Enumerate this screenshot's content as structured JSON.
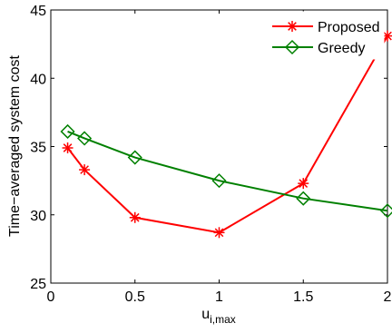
{
  "chart_data": {
    "type": "line",
    "x": [
      0.1,
      0.2,
      0.5,
      1,
      1.5,
      2
    ],
    "series": [
      {
        "name": "Proposed",
        "values": [
          34.9,
          33.3,
          29.8,
          28.7,
          32.3,
          43.1
        ],
        "color": "#ff0000",
        "marker": "asterisk"
      },
      {
        "name": "Greedy",
        "values": [
          36.1,
          35.6,
          34.2,
          32.5,
          31.2,
          30.3
        ],
        "color": "#008000",
        "marker": "diamond"
      }
    ],
    "xlabel": "u",
    "xlabel_sub": "i,max",
    "ylabel": "Time−averaged system cost",
    "xlim": [
      0,
      2
    ],
    "ylim": [
      25,
      45
    ],
    "xticks": [
      0,
      0.5,
      1,
      1.5,
      2
    ],
    "xtick_labels": [
      "0",
      "0.5",
      "1",
      "1.5",
      "2"
    ],
    "yticks": [
      25,
      30,
      35,
      40,
      45
    ],
    "ytick_labels": [
      "25",
      "30",
      "35",
      "40",
      "45"
    ],
    "legend_placement": "top-right",
    "grid": false
  }
}
